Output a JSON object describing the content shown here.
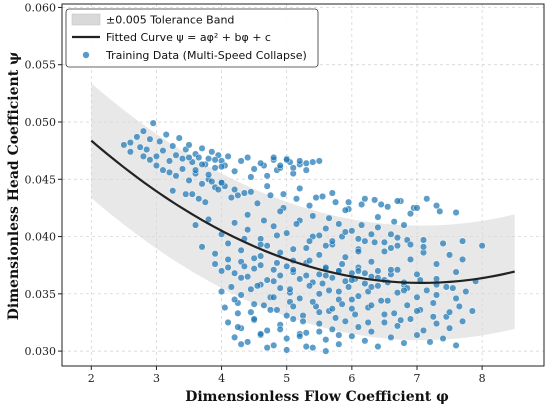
{
  "chart_data": {
    "type": "scatter",
    "title": "",
    "xlabel": "Dimensionless Flow Coefficient φ",
    "ylabel": "Dimensionless Head Coefficient ψ",
    "xlim": [
      1.55,
      8.95
    ],
    "ylim": [
      0.0287,
      0.0603
    ],
    "xticks": [
      2,
      3,
      4,
      5,
      6,
      7,
      8
    ],
    "yticks": [
      0.03,
      0.035,
      0.04,
      0.045,
      0.05,
      0.055,
      0.06
    ],
    "grid": true,
    "legend_position": "top-left",
    "colors": {
      "points": "#1f77b4",
      "curve": "#222222",
      "band": "#d9d9d9"
    },
    "fitted_curve": {
      "name": "Fitted Curve ψ = aφ² + bφ + c",
      "x_range": [
        2.0,
        8.5
      ],
      "coefficients": {
        "a": 0.000483,
        "b": -0.00683,
        "c": 0.0601
      }
    },
    "tolerance_band": {
      "name": "±0.005 Tolerance Band",
      "half_width": 0.005
    },
    "series": [
      {
        "name": "Training Data (Multi-Speed Collapse)",
        "x": [
          2.5,
          2.6,
          2.7,
          2.75,
          2.8,
          2.85,
          2.9,
          2.95,
          3.0,
          3.05,
          3.1,
          3.15,
          3.2,
          3.25,
          3.3,
          3.35,
          3.4,
          3.45,
          3.5,
          3.55,
          3.6,
          3.65,
          3.7,
          3.75,
          3.8,
          3.85,
          3.9,
          3.95,
          4.0,
          4.05,
          2.6,
          2.8,
          2.9,
          3.0,
          3.1,
          3.2,
          3.3,
          3.4,
          3.5,
          3.6,
          3.7,
          3.8,
          3.9,
          4.0,
          3.25,
          3.45,
          3.65,
          3.85,
          4.05,
          4.25,
          4.45,
          4.65,
          4.85,
          5.05,
          3.5,
          3.6,
          3.7,
          3.8,
          3.9,
          4.0,
          4.1,
          4.2,
          4.3,
          4.4,
          4.5,
          4.6,
          4.7,
          4.8,
          4.9,
          5.0,
          5.1,
          5.2,
          5.3,
          5.4,
          5.5,
          3.55,
          3.75,
          3.95,
          4.15,
          4.35,
          4.55,
          4.75,
          4.95,
          5.15,
          5.35,
          5.55,
          5.75,
          5.95,
          6.15,
          6.35,
          6.55,
          6.75,
          6.95,
          7.15,
          7.35,
          3.6,
          3.8,
          4.0,
          4.2,
          4.4,
          4.6,
          4.8,
          5.0,
          5.2,
          5.4,
          5.6,
          5.8,
          6.0,
          6.2,
          6.4,
          6.6,
          6.8,
          3.7,
          3.9,
          4.1,
          4.3,
          4.5,
          4.7,
          4.9,
          5.1,
          5.3,
          5.5,
          5.7,
          5.9,
          6.1,
          6.3,
          6.5,
          6.7,
          6.9,
          7.1,
          7.3,
          7.5,
          7.7,
          3.9,
          4.0,
          4.1,
          4.2,
          4.3,
          4.4,
          4.5,
          4.6,
          4.7,
          4.8,
          4.9,
          5.0,
          5.1,
          5.2,
          5.3,
          5.4,
          5.5,
          5.6,
          5.7,
          5.8,
          5.9,
          6.0,
          6.1,
          6.2,
          6.3,
          6.4,
          6.5,
          6.6,
          6.7,
          6.8,
          4.0,
          4.15,
          4.3,
          4.45,
          4.6,
          4.75,
          4.9,
          5.05,
          5.2,
          5.35,
          5.5,
          5.65,
          5.8,
          5.95,
          6.1,
          6.25,
          6.4,
          6.55,
          6.7,
          6.85,
          7.0,
          7.15,
          7.3,
          7.45,
          7.6,
          7.75,
          4.05,
          4.25,
          4.45,
          4.65,
          4.85,
          5.05,
          5.25,
          5.45,
          5.65,
          5.85,
          6.05,
          6.25,
          6.45,
          6.65,
          6.85,
          7.05,
          7.25,
          7.45,
          7.65,
          7.85,
          4.1,
          4.3,
          4.5,
          4.7,
          4.9,
          5.1,
          5.3,
          5.5,
          5.7,
          5.9,
          6.1,
          6.3,
          6.5,
          6.7,
          6.9,
          7.1,
          7.3,
          7.5,
          7.7,
          4.2,
          4.4,
          4.6,
          4.8,
          5.0,
          5.2,
          5.4,
          5.6,
          5.8,
          6.0,
          6.2,
          6.4,
          6.6,
          6.8,
          7.0,
          7.2,
          7.4,
          7.6,
          4.25,
          4.5,
          4.75,
          5.0,
          5.25,
          5.5,
          5.75,
          6.0,
          6.25,
          6.5,
          6.75,
          7.0,
          7.25,
          7.5,
          4.3,
          4.55,
          4.8,
          5.05,
          5.3,
          5.55,
          5.8,
          6.05,
          6.3,
          6.55,
          6.8,
          7.05,
          7.3,
          7.55,
          4.35,
          4.6,
          4.85,
          5.1,
          5.35,
          5.6,
          5.85,
          6.1,
          6.35,
          6.6,
          6.85,
          7.1,
          4.4,
          4.65,
          4.9,
          5.15,
          5.4,
          5.65,
          5.9,
          6.15,
          6.4,
          6.65,
          6.9,
          4.0,
          4.2,
          4.45,
          4.7,
          4.95,
          5.2,
          5.45,
          5.7,
          5.95,
          6.2,
          6.45,
          6.7,
          7.0,
          7.3,
          7.6,
          4.1,
          4.35,
          4.6,
          4.85,
          5.1,
          5.35,
          5.6,
          5.85,
          6.1,
          4.2,
          4.5,
          4.8,
          5.1,
          5.4,
          5.7,
          6.0,
          6.3,
          4.3,
          4.7,
          5.0,
          5.3,
          5.6,
          4.25,
          4.6,
          4.9,
          5.2,
          5.5,
          5.8,
          5.5,
          5.7,
          5.9,
          6.1,
          6.3,
          6.5,
          6.7,
          6.9,
          7.1,
          7.4,
          7.7,
          8.0,
          5.6,
          5.8,
          6.0,
          6.2,
          6.4,
          6.6,
          6.8,
          7.0,
          7.3,
          7.6,
          7.9,
          4.8,
          4.9,
          5.0,
          5.1,
          5.2,
          5.3
        ],
        "y": [
          0.048,
          0.0482,
          0.0487,
          0.0478,
          0.0492,
          0.0476,
          0.0485,
          0.0499,
          0.047,
          0.0483,
          0.0475,
          0.0489,
          0.0466,
          0.0479,
          0.0471,
          0.0486,
          0.0468,
          0.0476,
          0.048,
          0.0465,
          0.0472,
          0.0469,
          0.0477,
          0.0463,
          0.0468,
          0.0474,
          0.046,
          0.0471,
          0.0466,
          0.0462,
          0.0474,
          0.047,
          0.0467,
          0.0462,
          0.0458,
          0.0456,
          0.0453,
          0.0459,
          0.0449,
          0.0455,
          0.0446,
          0.045,
          0.0443,
          0.0447,
          0.044,
          0.0437,
          0.0433,
          0.0448,
          0.0444,
          0.0436,
          0.0452,
          0.0462,
          0.0458,
          0.0465,
          0.0469,
          0.0458,
          0.0463,
          0.0454,
          0.0467,
          0.0461,
          0.047,
          0.0457,
          0.0466,
          0.0469,
          0.0459,
          0.0464,
          0.0453,
          0.0467,
          0.046,
          0.0468,
          0.0455,
          0.0463,
          0.0458,
          0.0465,
          0.0466,
          0.0437,
          0.043,
          0.0441,
          0.0434,
          0.0438,
          0.0429,
          0.0436,
          0.0425,
          0.0433,
          0.0427,
          0.0435,
          0.043,
          0.0424,
          0.0428,
          0.0432,
          0.0426,
          0.0431,
          0.0425,
          0.0433,
          0.0422,
          0.041,
          0.0415,
          0.0402,
          0.0412,
          0.0406,
          0.0398,
          0.0409,
          0.0403,
          0.0414,
          0.04,
          0.0407,
          0.0411,
          0.0405,
          0.0396,
          0.0408,
          0.0402,
          0.041,
          0.0391,
          0.0385,
          0.0394,
          0.0388,
          0.0381,
          0.0392,
          0.0386,
          0.0379,
          0.039,
          0.0384,
          0.0393,
          0.0382,
          0.0389,
          0.0378,
          0.0387,
          0.0392,
          0.038,
          0.0386,
          0.0376,
          0.0384,
          0.038,
          0.0376,
          0.037,
          0.0373,
          0.0368,
          0.0378,
          0.0365,
          0.0372,
          0.0375,
          0.0362,
          0.0371,
          0.0366,
          0.0374,
          0.0369,
          0.0363,
          0.0377,
          0.036,
          0.0367,
          0.0372,
          0.0364,
          0.037,
          0.0361,
          0.0368,
          0.0373,
          0.0359,
          0.0365,
          0.037,
          0.0362,
          0.0367,
          0.0371,
          0.0358,
          0.0352,
          0.0356,
          0.0349,
          0.0354,
          0.0358,
          0.0347,
          0.0355,
          0.0351,
          0.0346,
          0.0357,
          0.035,
          0.0353,
          0.0345,
          0.0356,
          0.0348,
          0.0352,
          0.0357,
          0.0344,
          0.0351,
          0.0355,
          0.0347,
          0.0353,
          0.0349,
          0.0356,
          0.0346,
          0.0352,
          0.0338,
          0.0342,
          0.0334,
          0.034,
          0.0336,
          0.0343,
          0.0331,
          0.0339,
          0.0335,
          0.0341,
          0.0332,
          0.0338,
          0.0344,
          0.0333,
          0.034,
          0.0336,
          0.0342,
          0.033,
          0.0339,
          0.0335,
          0.0325,
          0.032,
          0.0327,
          0.0318,
          0.0323,
          0.0328,
          0.0316,
          0.0324,
          0.0319,
          0.0326,
          0.0321,
          0.0317,
          0.0325,
          0.0322,
          0.0328,
          0.0318,
          0.0324,
          0.032,
          0.0326,
          0.0312,
          0.0308,
          0.0314,
          0.0305,
          0.0311,
          0.0315,
          0.0303,
          0.031,
          0.0306,
          0.0313,
          0.0309,
          0.0304,
          0.0312,
          0.0307,
          0.0314,
          0.0308,
          0.0311,
          0.0305,
          0.0333,
          0.0328,
          0.0336,
          0.0331,
          0.0326,
          0.0334,
          0.0329,
          0.0337,
          0.0325,
          0.0332,
          0.0327,
          0.0335,
          0.033,
          0.0334,
          0.0364,
          0.0357,
          0.0361,
          0.0354,
          0.0366,
          0.0359,
          0.0352,
          0.0363,
          0.0356,
          0.036,
          0.0353,
          0.0362,
          0.0358,
          0.0355,
          0.0398,
          0.0393,
          0.0401,
          0.0389,
          0.0396,
          0.0392,
          0.04,
          0.0387,
          0.0395,
          0.039,
          0.0397,
          0.0391,
          0.0419,
          0.0414,
          0.0422,
          0.0411,
          0.0418,
          0.0416,
          0.0423,
          0.041,
          0.0417,
          0.0413,
          0.042,
          0.0447,
          0.0441,
          0.0439,
          0.0444,
          0.0437,
          0.0442,
          0.0434,
          0.0438,
          0.043,
          0.0433,
          0.0428,
          0.0431,
          0.0425,
          0.0427,
          0.0421,
          0.038,
          0.0374,
          0.0383,
          0.0377,
          0.0371,
          0.0379,
          0.0373,
          0.0376,
          0.037,
          0.0345,
          0.0341,
          0.0347,
          0.0339,
          0.0343,
          0.0337,
          0.0345,
          0.034,
          0.0306,
          0.0303,
          0.0301,
          0.0304,
          0.03,
          0.0321,
          0.0315,
          0.0319,
          0.0313,
          0.0317,
          0.0314,
          0.0401,
          0.0396,
          0.0404,
          0.0398,
          0.0402,
          0.0395,
          0.0399,
          0.0393,
          0.0397,
          0.0394,
          0.0396,
          0.0392,
          0.0366,
          0.037,
          0.0362,
          0.0368,
          0.0364,
          0.0371,
          0.036,
          0.0367,
          0.0363,
          0.0369,
          0.0361,
          0.0469,
          0.0462,
          0.0467,
          0.046,
          0.0466,
          0.0464
        ]
      }
    ]
  }
}
